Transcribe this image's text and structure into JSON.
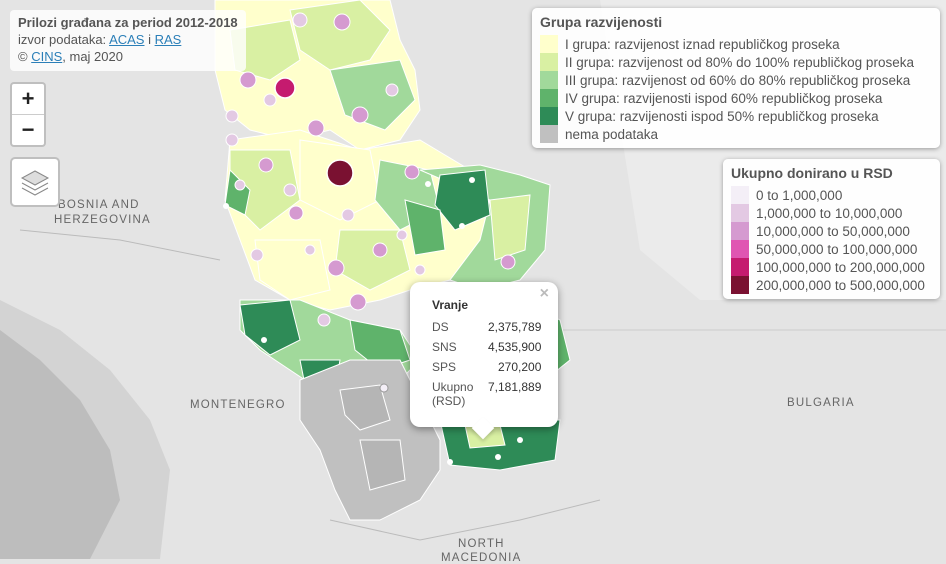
{
  "info": {
    "title": "Prilozi građana za period 2012-2018",
    "source_prefix": "izvor podataka: ",
    "source_link1": "ACAS",
    "source_sep": " i ",
    "source_link2": "RAS",
    "copyright_prefix": "© ",
    "copyright_link": "CINS",
    "copyright_suffix": ", maj 2020"
  },
  "controls": {
    "zoom_in": "+",
    "zoom_out": "−"
  },
  "legend_group": {
    "title": "Grupa razvijenosti",
    "items": [
      {
        "label": "I grupa: razvijenost iznad republičkog proseka",
        "color": "#ffffcc"
      },
      {
        "label": "II grupa:  razvijenost od 80% do 100% republičkog proseka",
        "color": "#d9f0a3"
      },
      {
        "label": "III grupa: razvijenost od 60% do 80% republičkog proseka",
        "color": "#a1d99b"
      },
      {
        "label": "IV grupa: razvijenosti ispod 60% republičkog proseka",
        "color": "#5fb36b"
      },
      {
        "label": "V grupa: razvijenosti ispod 50% republičkog proseka",
        "color": "#2e8b57"
      },
      {
        "label": "nema podataka",
        "color": "#c0c0c0"
      }
    ]
  },
  "legend_amount": {
    "title": "Ukupno donirano u RSD",
    "items": [
      {
        "label": "0 to 1,000,000",
        "color": "#f4eff7"
      },
      {
        "label": "1,000,000 to 10,000,000",
        "color": "#e3c9e3"
      },
      {
        "label": "10,000,000 to 50,000,000",
        "color": "#d59ad0"
      },
      {
        "label": "50,000,000 to 100,000,000",
        "color": "#e055b2"
      },
      {
        "label": "100,000,000 to 200,000,000",
        "color": "#c51b6f"
      },
      {
        "label": "200,000,000 to 500,000,000",
        "color": "#7a1131"
      }
    ]
  },
  "popup": {
    "close": "×",
    "name": "Vranje",
    "rows": [
      {
        "party": "DS",
        "value": "2,375,789"
      },
      {
        "party": "SNS",
        "value": "4,535,900"
      },
      {
        "party": "SPS",
        "value": "270,200"
      },
      {
        "party": "Ukupno (RSD)",
        "value": "7,181,889"
      }
    ]
  },
  "map_labels": {
    "bosnia": "BOSNIA AND",
    "herzegovina": "HERZEGOVINA",
    "montenegro": "MONTENEGRO",
    "bulgaria": "BULGARIA",
    "north": "NORTH",
    "macedonia": "MACEDONIA"
  }
}
